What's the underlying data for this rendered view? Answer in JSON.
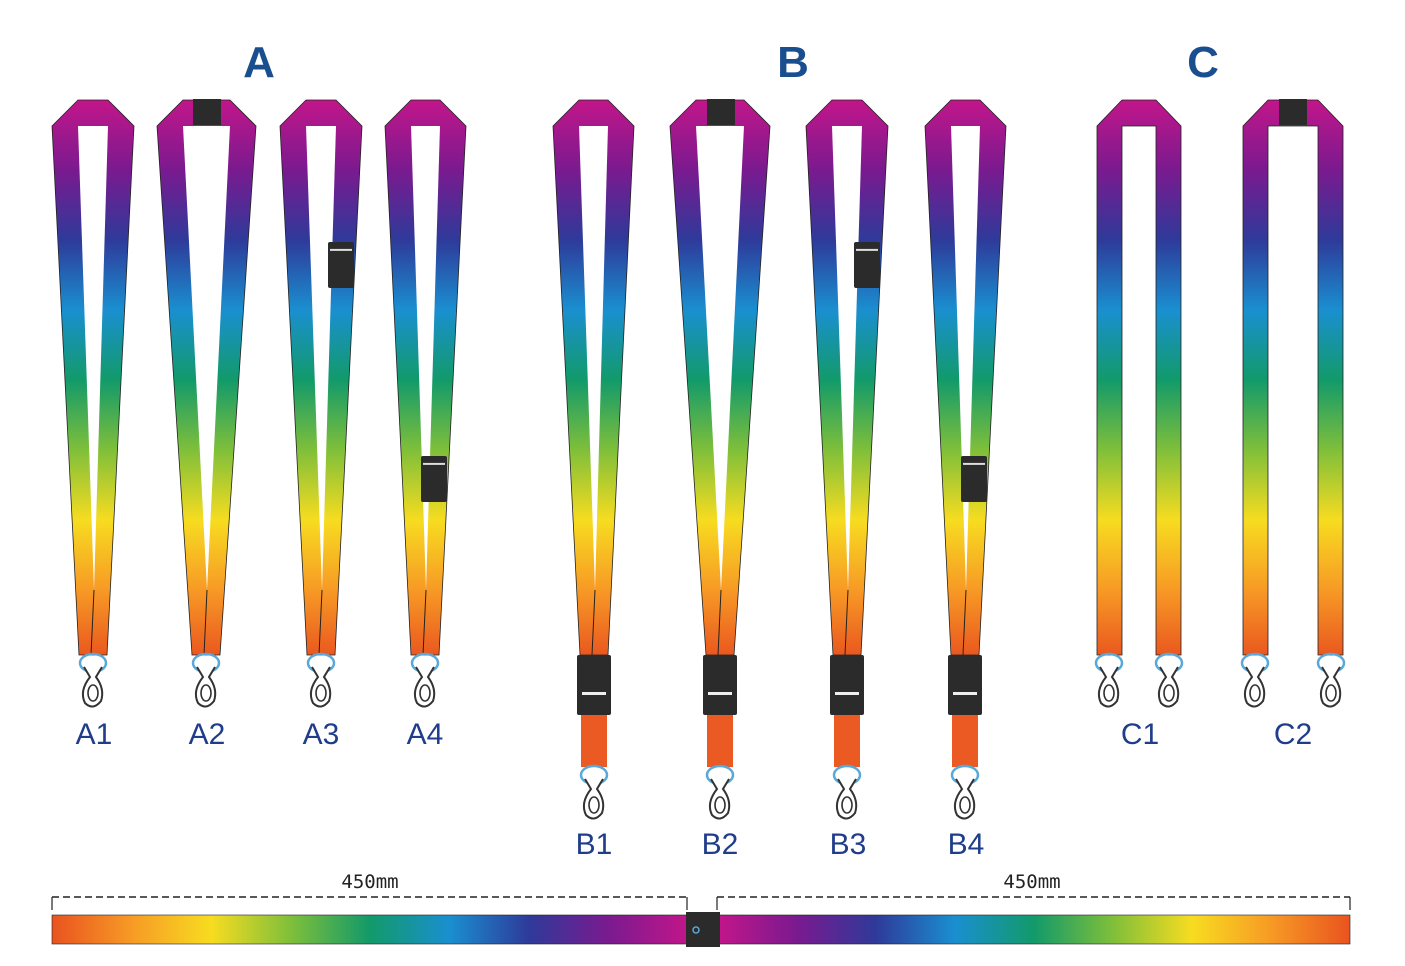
{
  "groups": [
    {
      "heading": "A",
      "items": [
        "A1",
        "A2",
        "A3",
        "A4"
      ]
    },
    {
      "heading": "B",
      "items": [
        "B1",
        "B2",
        "B3",
        "B4"
      ]
    },
    {
      "heading": "C",
      "items": [
        "C1",
        "C2"
      ]
    }
  ],
  "dimensions": {
    "left_label": "450mm",
    "right_label": "450mm"
  },
  "colors": {
    "heading": "#1a4f8f",
    "label": "#1f3d8a",
    "gradient": [
      "#c2168a",
      "#7a1a8f",
      "#2e3a9a",
      "#1a8fd0",
      "#129a6a",
      "#7fbf3a",
      "#f7dc20",
      "#f79a25",
      "#e9531f"
    ],
    "hardware": "#2b2b2b"
  }
}
